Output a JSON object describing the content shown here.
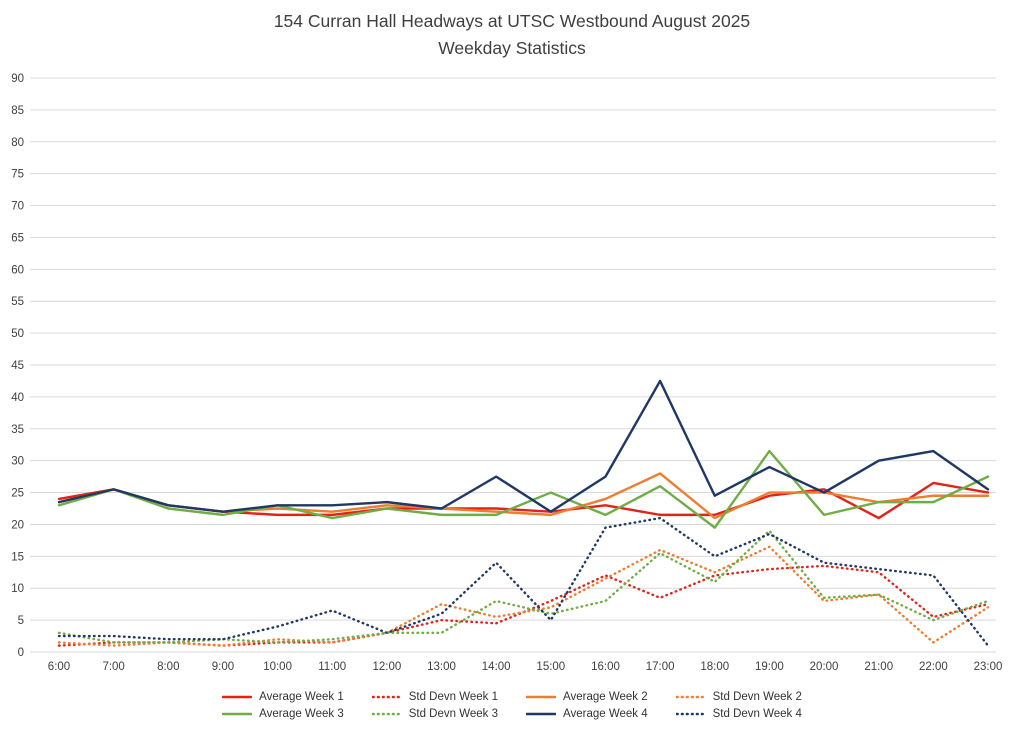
{
  "chart_data": {
    "type": "line",
    "title": "154 Curran Hall Headways at UTSC Westbound August 2025",
    "subtitle": "Weekday Statistics",
    "xlabel": "",
    "ylabel": "",
    "ylim": [
      0,
      90
    ],
    "ytick_step": 5,
    "grid": true,
    "legend_position": "bottom",
    "grid_color": "#d9d9d9",
    "axis_text_color": "#404040",
    "x": [
      "6:00",
      "7:00",
      "8:00",
      "9:00",
      "10:00",
      "11:00",
      "12:00",
      "13:00",
      "14:00",
      "15:00",
      "16:00",
      "17:00",
      "18:00",
      "19:00",
      "20:00",
      "21:00",
      "22:00",
      "23:00"
    ],
    "series": [
      {
        "name": "Average Week 1",
        "color": "#e2231a",
        "style": "solid",
        "values": [
          24,
          25.5,
          23,
          22,
          21.5,
          21.5,
          22.5,
          22.5,
          22.5,
          22,
          23,
          21.5,
          21.5,
          24.5,
          25.5,
          21,
          26.5,
          25
        ]
      },
      {
        "name": "Std Devn Week 1",
        "color": "#e2231a",
        "style": "dotted",
        "values": [
          1,
          1.5,
          1.5,
          1,
          1.5,
          1.5,
          3,
          5,
          4.5,
          8,
          12,
          8.5,
          12,
          13,
          13.5,
          12.5,
          5.5,
          7.5
        ]
      },
      {
        "name": "Average Week 2",
        "color": "#ed7d31",
        "style": "solid",
        "values": [
          23.5,
          25.5,
          23,
          22,
          22.5,
          22,
          23,
          22.5,
          22,
          21.5,
          24,
          28,
          21,
          25,
          25,
          23.5,
          24.5,
          24.5
        ]
      },
      {
        "name": "Std Devn Week 2",
        "color": "#ed7d31",
        "style": "dotted",
        "values": [
          1.5,
          1,
          1.5,
          1,
          2,
          1.5,
          3,
          7.5,
          5.5,
          7,
          11.5,
          16,
          12.5,
          16.5,
          8,
          9,
          1.5,
          7
        ]
      },
      {
        "name": "Average Week 3",
        "color": "#70ad47",
        "style": "solid",
        "values": [
          23,
          25.5,
          22.5,
          21.5,
          23,
          21,
          22.5,
          21.5,
          21.5,
          25,
          21.5,
          26,
          19.5,
          31.5,
          21.5,
          23.5,
          23.5,
          27.5
        ]
      },
      {
        "name": "Std Devn Week 3",
        "color": "#70ad47",
        "style": "dotted",
        "values": [
          3,
          1.5,
          1.5,
          2,
          1.5,
          2,
          3,
          3,
          8,
          6,
          8,
          15.5,
          11,
          19,
          8.5,
          9,
          5,
          8
        ]
      },
      {
        "name": "Average Week 4",
        "color": "#1f3864",
        "style": "solid",
        "values": [
          23.5,
          25.5,
          23,
          22,
          23,
          23,
          23.5,
          22.5,
          27.5,
          22,
          27.5,
          42.5,
          24.5,
          29,
          25,
          30,
          31.5,
          25.5
        ]
      },
      {
        "name": "Std Devn Week 4",
        "color": "#1f3864",
        "style": "dotted",
        "values": [
          2.5,
          2.5,
          2,
          2,
          4,
          6.5,
          3,
          6,
          14,
          5,
          19.5,
          21,
          15,
          18.5,
          14,
          13,
          12,
          1
        ]
      }
    ]
  }
}
